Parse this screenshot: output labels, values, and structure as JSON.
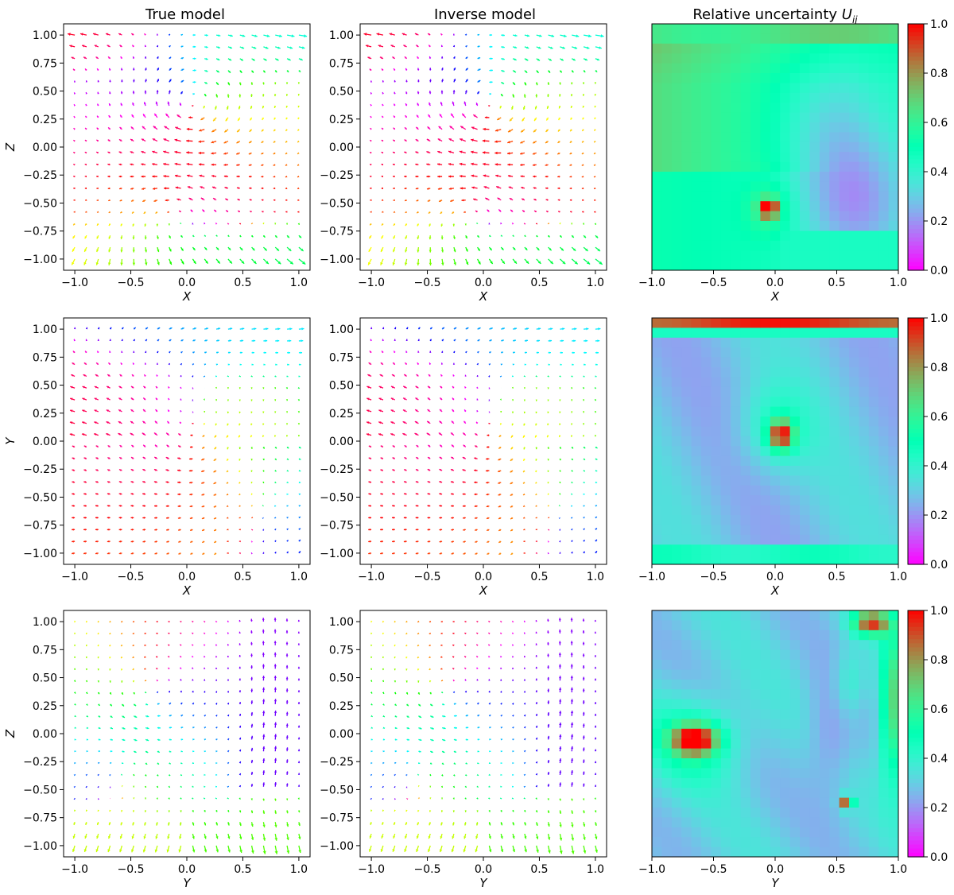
{
  "figure": {
    "col_titles": {
      "true": "True model",
      "inverse": "Inverse model",
      "uncertainty_prefix": "Relative uncertainty ",
      "uncertainty_symbol": "U",
      "uncertainty_subscript": "ij"
    },
    "colorbar_ticks": [
      "0.0",
      "0.2",
      "0.4",
      "0.6",
      "0.8",
      "1.0"
    ],
    "quiver_y_ticks": [
      "1.00",
      "0.75",
      "0.50",
      "0.25",
      "0.00",
      "−0.25",
      "−0.50",
      "−0.75",
      "−1.00"
    ],
    "x_ticks": [
      "−1.0",
      "−0.5",
      "0.0",
      "0.5",
      "1.0"
    ],
    "grid_n": 20,
    "heatmap_n": 25,
    "colormap": "rainbow"
  },
  "chart_data": [
    {
      "type": "quiver",
      "title": "True model",
      "xlabel": "X",
      "ylabel": "Z",
      "xlim": [
        -1.1,
        1.1
      ],
      "ylim": [
        -1.1,
        1.1
      ],
      "field": "xz_true"
    },
    {
      "type": "quiver",
      "title": "Inverse model",
      "xlabel": "X",
      "ylabel": "",
      "xlim": [
        -1.1,
        1.1
      ],
      "ylim": [
        -1.1,
        1.1
      ],
      "field": "xz_inverse"
    },
    {
      "type": "heatmap",
      "title": "Relative uncertainty U_ij",
      "xlabel": "X",
      "xlim": [
        -1.0,
        1.0
      ],
      "ylim": [
        -1.0,
        1.0
      ],
      "clim": [
        0.0,
        1.0
      ],
      "features": "high (0.6-0.7) top-left region and top edge; hot spot 1.0 near (-0.05,-0.5); low (0.15-0.25) right-lower region"
    },
    {
      "type": "quiver",
      "title": "",
      "xlabel": "X",
      "ylabel": "Y",
      "xlim": [
        -1.1,
        1.1
      ],
      "ylim": [
        -1.1,
        1.1
      ],
      "field": "xy_true"
    },
    {
      "type": "quiver",
      "title": "",
      "xlabel": "X",
      "ylabel": "",
      "xlim": [
        -1.1,
        1.1
      ],
      "ylim": [
        -1.1,
        1.1
      ],
      "field": "xy_inverse"
    },
    {
      "type": "heatmap",
      "title": "",
      "xlabel": "X",
      "xlim": [
        -1.0,
        1.0
      ],
      "ylim": [
        -1.0,
        1.0
      ],
      "clim": [
        0.0,
        1.0
      ],
      "features": "top rows 0.9-1.0; bottom rows 0.45; hot spot 1.0 near (0.05,0.05); background 0.2-0.35"
    },
    {
      "type": "quiver",
      "title": "",
      "xlabel": "Y",
      "ylabel": "Z",
      "xlim": [
        -1.1,
        1.1
      ],
      "ylim": [
        -1.1,
        1.1
      ],
      "field": "yz_true"
    },
    {
      "type": "quiver",
      "title": "",
      "xlabel": "Y",
      "ylabel": "",
      "xlim": [
        -1.1,
        1.1
      ],
      "ylim": [
        -1.1,
        1.1
      ],
      "field": "yz_inverse"
    },
    {
      "type": "heatmap",
      "title": "",
      "xlabel": "Y",
      "xlim": [
        -1.0,
        1.0
      ],
      "ylim": [
        -1.0,
        1.0
      ],
      "clim": [
        0.0,
        1.0
      ],
      "features": "hot spots 1.0 near (-0.65,-0.05), (0.58,-0.55), (0.75,0.9); right edge high; low 0.15 near (0.45,0.0)"
    }
  ]
}
